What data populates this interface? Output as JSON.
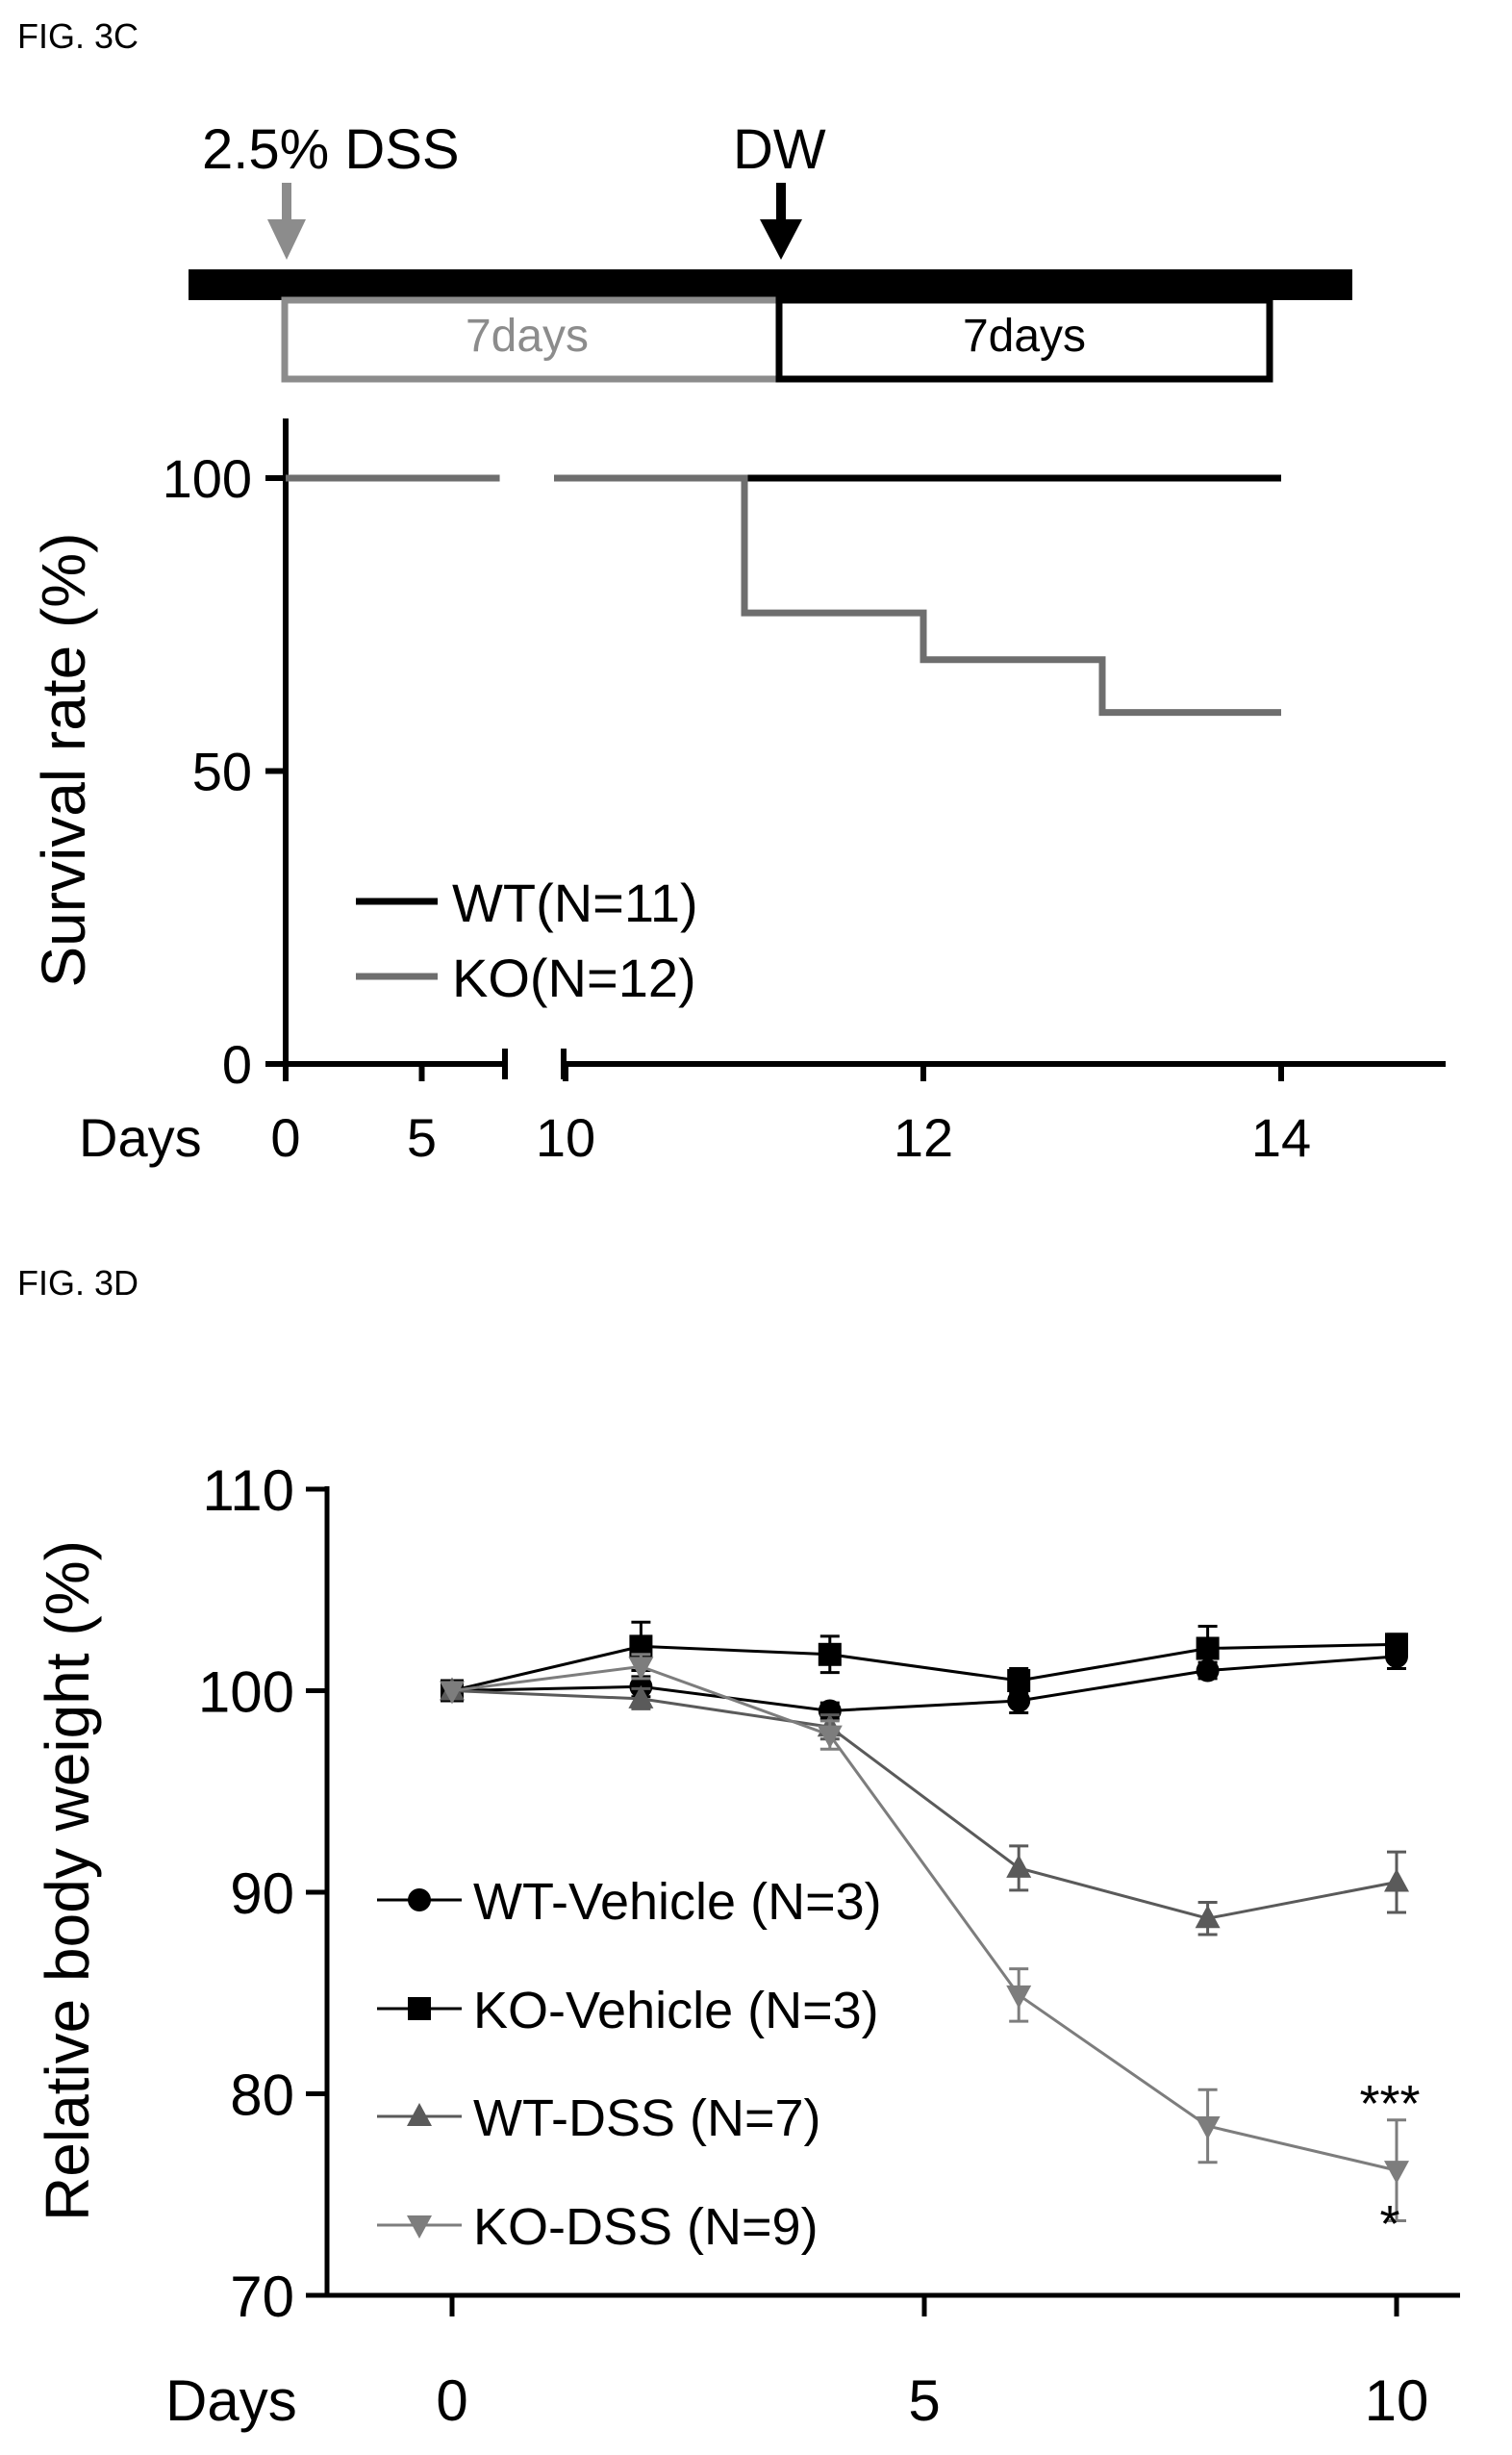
{
  "colors": {
    "wt": "#000000",
    "ko": "#6e6e6e",
    "dss": "#8c8c8c",
    "dw": "#000000",
    "wt_dss": "#5a5a5a",
    "ko_dss": "#7d7d7d"
  },
  "fig3c": {
    "label": "FIG. 3C",
    "timeline": {
      "dss_label": "2.5% DSS",
      "dw_label": "DW",
      "dss_box_label": "7days",
      "dw_box_label": "7days"
    }
  },
  "fig3d": {
    "label": "FIG. 3D"
  },
  "chart_data": [
    {
      "type": "line",
      "ylabel": "Survival rate (%)",
      "xlabel": "Days",
      "xticks_left": [
        "0",
        "5"
      ],
      "xticks_right": [
        "10",
        "12",
        "14"
      ],
      "yticks": [
        "0",
        "50",
        "100"
      ],
      "ylim": [
        0,
        110
      ],
      "axis_break": true,
      "legend_position": "lower-left",
      "series": [
        {
          "name": "WT(N=11)",
          "steps": [
            [
              0,
              100
            ],
            [
              14,
              100
            ]
          ]
        },
        {
          "name": "KO(N=12)",
          "steps": [
            [
              0,
              100
            ],
            [
              11,
              100
            ],
            [
              11,
              77
            ],
            [
              12,
              77
            ],
            [
              12,
              69
            ],
            [
              13,
              69
            ],
            [
              13,
              60
            ],
            [
              14,
              60
            ]
          ]
        }
      ]
    },
    {
      "type": "line",
      "ylabel": "Relative body weight (%)",
      "xlabel": "Days",
      "x": [
        0,
        2,
        4,
        6,
        8,
        10
      ],
      "xticks": [
        "0",
        "5",
        "10"
      ],
      "yticks": [
        "70",
        "80",
        "90",
        "100",
        "110"
      ],
      "ylim": [
        70,
        110
      ],
      "xlim": [
        0,
        11
      ],
      "legend_position": "lower-left",
      "annotations": [
        "***",
        "*"
      ],
      "series": [
        {
          "name": "WT-Vehicle (N=3)",
          "marker": "circle",
          "values": [
            100,
            100.2,
            99,
            99.5,
            101,
            101.7
          ],
          "errors": [
            0,
            0.5,
            0.4,
            0.6,
            0.4,
            0.6
          ]
        },
        {
          "name": "KO-Vehicle (N=3)",
          "marker": "square",
          "values": [
            100,
            102.2,
            101.8,
            100.5,
            102.1,
            102.3
          ],
          "errors": [
            0,
            1.2,
            0.9,
            0.6,
            1.1,
            0.5
          ]
        },
        {
          "name": "WT-DSS (N=7)",
          "marker": "triangle-up",
          "values": [
            100,
            99.6,
            98.2,
            91.2,
            88.7,
            90.5
          ],
          "errors": [
            0,
            0.5,
            0.6,
            1.1,
            0.8,
            1.5
          ]
        },
        {
          "name": "KO-DSS (N=9)",
          "marker": "triangle-down",
          "values": [
            100,
            101.2,
            97.8,
            84.9,
            78.4,
            76.2
          ],
          "errors": [
            0,
            0.6,
            0.7,
            1.3,
            1.8,
            2.5
          ]
        }
      ]
    }
  ]
}
